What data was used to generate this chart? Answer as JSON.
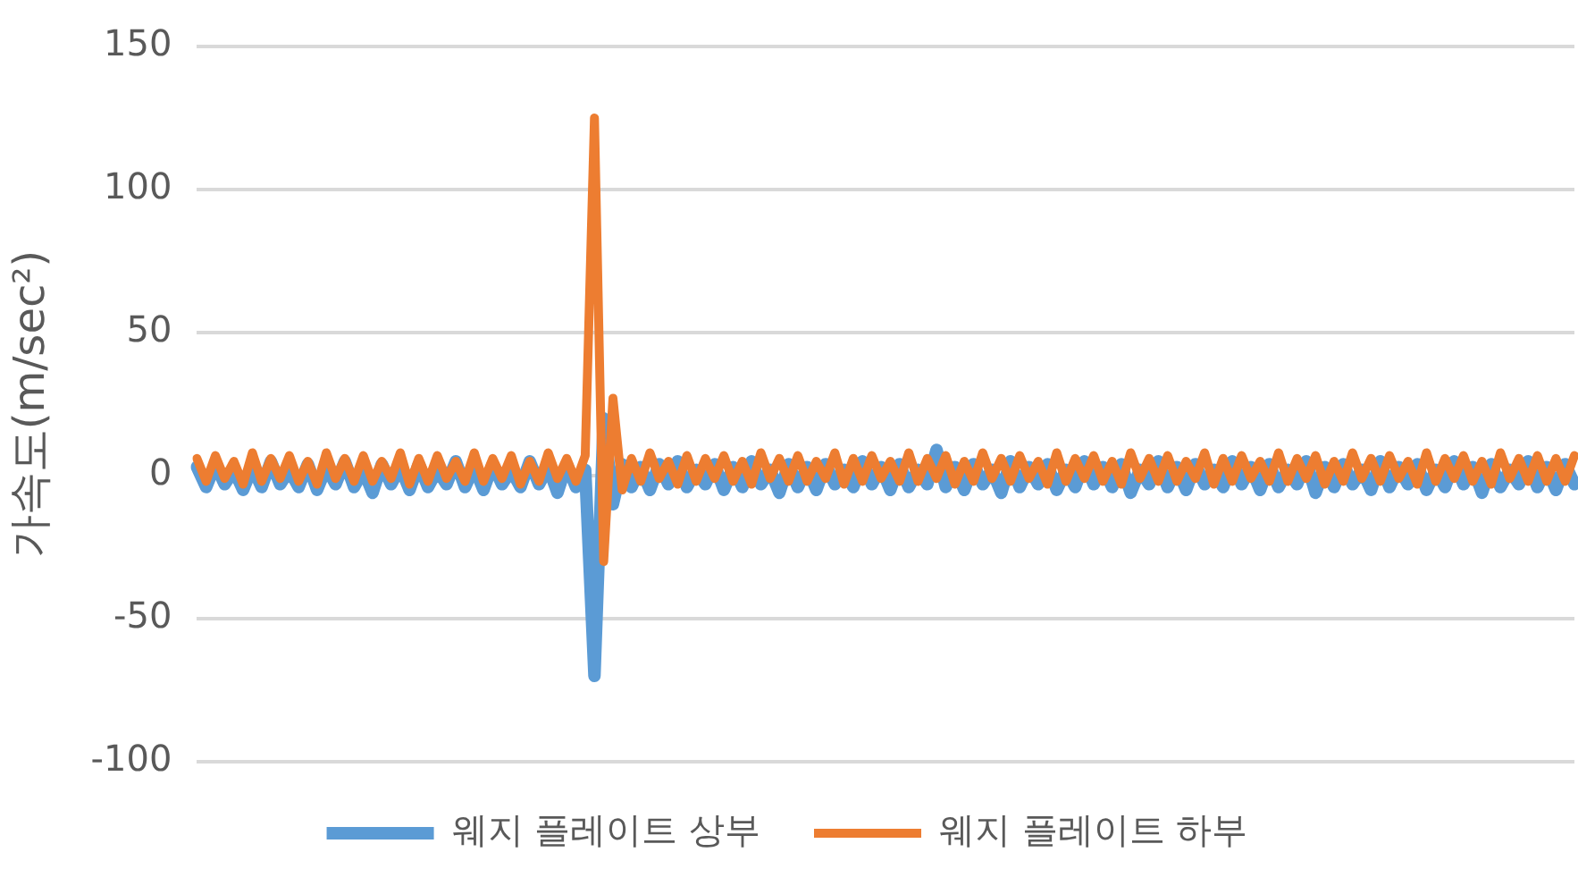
{
  "chart_data": {
    "type": "line",
    "ylabel": "가속도(m/sec²)",
    "categories": [
      null,
      null,
      null,
      null,
      null,
      null,
      null,
      null,
      null,
      null,
      null,
      null,
      null,
      null,
      null,
      null,
      null,
      null,
      null,
      null,
      null,
      null,
      null,
      null,
      null,
      null,
      null,
      null,
      null,
      null,
      null,
      null,
      null,
      null,
      null,
      null,
      null,
      null,
      null,
      null,
      null,
      null,
      null,
      null,
      null,
      null,
      null,
      null,
      null,
      null,
      null,
      null,
      null,
      null,
      null,
      null,
      null,
      null,
      null,
      null,
      null,
      null,
      null,
      null,
      null,
      null,
      null,
      null,
      null,
      null,
      null,
      null,
      null,
      null,
      null,
      null,
      null,
      null,
      null,
      null,
      null,
      null,
      null,
      null,
      null,
      null,
      null,
      null,
      null,
      null,
      null,
      null,
      null,
      null,
      null,
      null,
      null,
      null,
      null,
      null,
      null,
      null,
      null,
      null,
      null,
      null,
      null,
      null,
      null,
      null,
      null,
      null,
      null,
      null,
      null,
      null,
      null,
      null,
      null,
      null,
      null,
      null,
      null,
      null,
      null,
      null,
      null,
      null,
      null,
      null,
      null,
      null,
      null,
      null,
      null,
      null,
      null,
      null,
      null,
      null,
      null,
      null,
      null,
      null,
      null,
      null,
      null,
      null,
      null,
      null
    ],
    "series": [
      {
        "name": "웨지 플레이트 상부",
        "color": "#5b9bd5",
        "values": [
          3,
          -4,
          4,
          -3,
          2,
          -5,
          3,
          -4,
          5,
          -3,
          2,
          -4,
          4,
          -5,
          3,
          -3,
          5,
          -4,
          2,
          -6,
          4,
          -3,
          3,
          -5,
          4,
          -4,
          2,
          -3,
          5,
          -4,
          3,
          -5,
          4,
          -3,
          2,
          -4,
          5,
          -3,
          3,
          -6,
          4,
          -4,
          2,
          -70,
          20,
          -10,
          4,
          -4,
          3,
          -5,
          4,
          -3,
          5,
          -4,
          2,
          -3,
          4,
          -5,
          3,
          -4,
          5,
          -3,
          2,
          -6,
          4,
          -4,
          3,
          -5,
          4,
          -3,
          2,
          -4,
          5,
          -3,
          3,
          -5,
          4,
          -4,
          2,
          -3,
          9,
          -4,
          3,
          -5,
          4,
          -3,
          2,
          -6,
          5,
          -4,
          3,
          -3,
          4,
          -5,
          2,
          -4,
          5,
          -3,
          3,
          -4,
          4,
          -6,
          2,
          -3,
          5,
          -4,
          3,
          -5,
          4,
          -3,
          2,
          -4,
          5,
          -3,
          3,
          -5,
          4,
          -4,
          2,
          -3,
          5,
          -6,
          3,
          -4,
          4,
          -3,
          2,
          -5,
          5,
          -4,
          3,
          -3,
          4,
          -5,
          2,
          -4,
          5,
          -3,
          3,
          -6,
          4,
          -4,
          2,
          -3,
          5,
          -4,
          3,
          -5,
          4,
          -3
        ]
      },
      {
        "name": "웨지 플레이트 하부",
        "color": "#ed7d31",
        "values": [
          6,
          -2,
          7,
          -1,
          5,
          -3,
          8,
          -2,
          6,
          -1,
          7,
          -2,
          5,
          -3,
          8,
          -1,
          6,
          -2,
          7,
          -2,
          5,
          -1,
          8,
          -3,
          6,
          -2,
          7,
          -1,
          5,
          -2,
          8,
          -2,
          6,
          -1,
          7,
          -3,
          5,
          -2,
          8,
          -1,
          6,
          -2,
          7,
          125,
          -30,
          27,
          -5,
          6,
          -2,
          8,
          -1,
          5,
          -3,
          7,
          -2,
          6,
          -1,
          7,
          -2,
          5,
          -3,
          8,
          -1,
          6,
          -2,
          7,
          -2,
          5,
          -1,
          8,
          -3,
          6,
          -2,
          7,
          -1,
          5,
          -2,
          8,
          -2,
          6,
          -1,
          7,
          -3,
          5,
          -2,
          8,
          -1,
          6,
          -2,
          7,
          -1,
          5,
          -3,
          8,
          -2,
          6,
          -1,
          7,
          -2,
          5,
          -3,
          8,
          -1,
          6,
          -2,
          7,
          -2,
          5,
          -1,
          8,
          -3,
          6,
          -2,
          7,
          -1,
          5,
          -2,
          8,
          -2,
          6,
          -1,
          7,
          -3,
          5,
          -2,
          8,
          -1,
          6,
          -2,
          7,
          -1,
          5,
          -3,
          8,
          -2,
          6,
          -1,
          7,
          -2,
          5,
          -3,
          8,
          -1,
          6,
          -2,
          7,
          -2,
          6,
          -2,
          7
        ]
      }
    ],
    "ylim": [
      -100,
      150
    ],
    "yticks": [
      -100,
      -50,
      0,
      50,
      100,
      150
    ],
    "grid": "y",
    "legend": "bottom",
    "marker": "none"
  }
}
